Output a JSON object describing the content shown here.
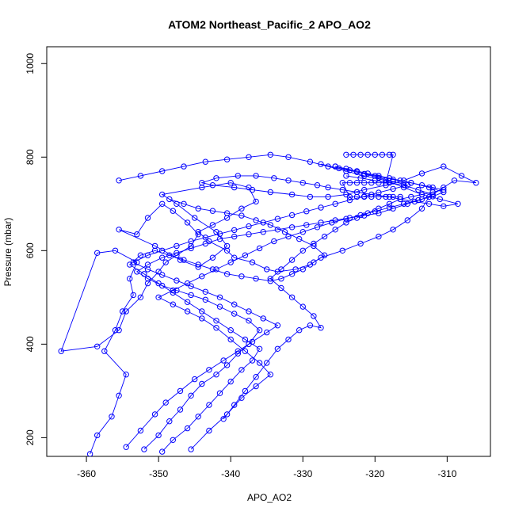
{
  "chart_data": {
    "type": "line",
    "title": "ATOM2 Northeast_Pacific_2 APO_AO2",
    "xlabel": "APO_AO2",
    "ylabel": "Pressure (mbar)",
    "xlim": [
      -365.5,
      -304
    ],
    "ylim": [
      1036,
      160
    ],
    "y_inverted": true,
    "x_ticks": [
      -360,
      -350,
      -340,
      -330,
      -320,
      -310
    ],
    "x_tick_labels": [
      "-360",
      "-350",
      "-340",
      "-330",
      "-320",
      "-310"
    ],
    "y_ticks": [
      200,
      400,
      600,
      800,
      1000
    ],
    "y_tick_labels": [
      "200",
      "400",
      "600",
      "800",
      "1000"
    ],
    "grid": false,
    "legend": "none",
    "line_color": "#0000ff",
    "marker": "open-circle",
    "series": [
      {
        "x": [
          -359.5,
          -358.5,
          -356.5,
          -355.5,
          -354.5,
          -357.5,
          -356,
          -355,
          -353.5,
          -354,
          -353,
          -356,
          -358.5,
          -363.5,
          -358.5,
          -355.5,
          -354.5,
          -352.5,
          -351.5,
          -350,
          -349,
          -347.5,
          -345.5,
          -344.5,
          -346,
          -348,
          -349.5,
          -351.5,
          -353,
          -355.5,
          -350.5,
          -347,
          -344.5,
          -342.5,
          -340.5,
          -342,
          -345,
          -347.5,
          -349.5,
          -344,
          -340,
          -337.5,
          -336.5,
          -338.5,
          -340.5,
          -342.5,
          -344.5,
          -343,
          -340.5,
          -339.5,
          -337,
          -335,
          -333.5,
          -331,
          -329,
          -327.5,
          -324.5,
          -322,
          -319.5,
          -317.5,
          -315.5,
          -313.5,
          -312.5,
          -310.5,
          -309,
          -306,
          -308,
          -310.5,
          -313.5,
          -316,
          -318.5,
          -321.5,
          -324,
          -326.5,
          -329,
          -331.5,
          -334.5,
          -337,
          -339.5,
          -342.5,
          -344,
          -342,
          -339,
          -336.5,
          -334,
          -332,
          -330,
          -328,
          -326.5,
          -324.5,
          -322.5,
          -320.5,
          -318,
          -316.5,
          -314.5,
          -312.5,
          -310.5,
          -308.5,
          -311,
          -313.5,
          -316,
          -318.5,
          -321.5,
          -324,
          -326.5,
          -329,
          -332,
          -334.5,
          -337.5,
          -340.5,
          -343.5,
          -346.5,
          -349.5,
          -352.5,
          -355.5
        ],
        "y": [
          165,
          205,
          245,
          290,
          335,
          385,
          430,
          470,
          505,
          540,
          575,
          600,
          595,
          385,
          395,
          430,
          470,
          500,
          530,
          555,
          575,
          590,
          610,
          635,
          660,
          685,
          700,
          670,
          635,
          645,
          610,
          580,
          565,
          585,
          610,
          640,
          670,
          700,
          720,
          735,
          745,
          735,
          705,
          690,
          670,
          655,
          640,
          620,
          600,
          585,
          575,
          560,
          555,
          560,
          570,
          585,
          600,
          615,
          630,
          645,
          665,
          690,
          715,
          735,
          750,
          745,
          760,
          780,
          765,
          750,
          740,
          730,
          720,
          715,
          715,
          720,
          725,
          730,
          735,
          740,
          745,
          755,
          760,
          760,
          755,
          750,
          745,
          740,
          735,
          730,
          725,
          720,
          715,
          710,
          705,
          700,
          695,
          700,
          710,
          720,
          735,
          750,
          760,
          770,
          780,
          790,
          800,
          805,
          800,
          795,
          790,
          780,
          770,
          760,
          750
        ]
      },
      {
        "x": [
          -349.5,
          -348,
          -346,
          -344.5,
          -343,
          -341.5,
          -340,
          -338.5,
          -337,
          -336,
          -338,
          -340,
          -342,
          -344,
          -346,
          -348,
          -350,
          -352,
          -354,
          -352.5,
          -350.5,
          -348.5,
          -346.5,
          -344.5,
          -342.5,
          -340.5,
          -338.5,
          -336.5,
          -334.5,
          -333,
          -331.5,
          -330,
          -328.5,
          -327,
          -328.5,
          -330.5,
          -332.5,
          -334.5,
          -336.5,
          -338.5,
          -340.5,
          -342.5,
          -344.5,
          -346.5,
          -348.5
        ],
        "y": [
          170,
          195,
          220,
          245,
          270,
          295,
          320,
          345,
          365,
          390,
          410,
          430,
          450,
          470,
          490,
          510,
          530,
          550,
          570,
          590,
          600,
          590,
          580,
          570,
          560,
          550,
          545,
          540,
          535,
          540,
          550,
          560,
          575,
          590,
          610,
          625,
          640,
          655,
          665,
          675,
          680,
          685,
          690,
          700,
          710
        ]
      },
      {
        "x": [
          -352,
          -350,
          -348.5,
          -347,
          -345.5,
          -344,
          -342,
          -340.5,
          -339,
          -337.5,
          -336,
          -337.5,
          -339.5,
          -341.5,
          -343.5,
          -345.5,
          -347.5,
          -349.5,
          -351.5,
          -353,
          -351.5,
          -349.5,
          -347.5,
          -345.5,
          -343.5,
          -341.5,
          -339.5,
          -337.5,
          -335.5,
          -333.5,
          -331.5,
          -329.5,
          -327.5,
          -325.5,
          -323.5,
          -321.5,
          -319.5,
          -317.5,
          -315.5,
          -313.5,
          -312,
          -314,
          -316,
          -318,
          -320,
          -322,
          -324
        ],
        "y": [
          175,
          205,
          235,
          260,
          290,
          315,
          335,
          355,
          380,
          400,
          430,
          450,
          465,
          480,
          495,
          505,
          515,
          525,
          540,
          555,
          570,
          585,
          595,
          605,
          615,
          625,
          630,
          635,
          640,
          645,
          650,
          655,
          660,
          665,
          670,
          675,
          680,
          690,
          700,
          710,
          720,
          730,
          740,
          745,
          750,
          755,
          760
        ]
      },
      {
        "x": [
          -345.5,
          -343,
          -340.5,
          -338.5,
          -336.5,
          -334.5,
          -336,
          -338,
          -340,
          -342,
          -344,
          -346,
          -348,
          -350,
          -348,
          -346,
          -344,
          -342,
          -340,
          -338,
          -336,
          -334,
          -332,
          -330,
          -328,
          -326,
          -324,
          -322,
          -320,
          -318,
          -316,
          -314,
          -312,
          -310.5,
          -312.5,
          -315,
          -317.5,
          -320,
          -322.5,
          -325,
          -327.5
        ],
        "y": [
          175,
          215,
          250,
          285,
          310,
          335,
          360,
          385,
          410,
          435,
          455,
          470,
          485,
          500,
          515,
          530,
          545,
          560,
          575,
          590,
          605,
          620,
          630,
          640,
          650,
          660,
          668,
          676,
          684,
          692,
          700,
          708,
          716,
          725,
          735,
          745,
          752,
          760,
          768,
          776,
          785
        ]
      },
      {
        "x": [
          -354.5,
          -352.5,
          -350.5,
          -349,
          -347,
          -345,
          -343,
          -341,
          -339,
          -337,
          -335,
          -333.5,
          -335.5,
          -337.5,
          -339.5,
          -341.5,
          -343.5,
          -345.5,
          -347.5,
          -349.5,
          -351.5,
          -353.5,
          -351.5,
          -349.5,
          -347.5,
          -345.5,
          -343.5,
          -341.5,
          -339.5,
          -337.5,
          -335.5,
          -333.5,
          -331.5,
          -329.5,
          -327.5,
          -325.5,
          -323.5,
          -321.5,
          -319.5,
          -317.5,
          -315.5,
          -317.5,
          -319.5,
          -321.5,
          -323.5,
          -325.5
        ],
        "y": [
          180,
          215,
          250,
          275,
          300,
          325,
          345,
          365,
          385,
          405,
          425,
          440,
          455,
          470,
          485,
          500,
          512,
          524,
          536,
          548,
          560,
          575,
          590,
          600,
          610,
          620,
          628,
          636,
          644,
          652,
          660,
          668,
          676,
          684,
          692,
          700,
          708,
          716,
          724,
          732,
          740,
          748,
          756,
          764,
          772,
          780
        ]
      },
      {
        "x": [
          -341,
          -339.5,
          -338,
          -336.5,
          -335,
          -333.5,
          -332,
          -330.5,
          -329,
          -327.5,
          -328.5,
          -330,
          -331.5,
          -333,
          -334.5,
          -333,
          -331.5,
          -330,
          -328.5,
          -327,
          -325.5,
          -324,
          -322.5,
          -321,
          -319.5,
          -318,
          -316.5,
          -315,
          -313.5,
          -312,
          -310.5,
          -312,
          -313.5,
          -315,
          -316.5,
          -318,
          -319.5,
          -321,
          -322.5,
          -324,
          -325.5
        ],
        "y": [
          240,
          270,
          300,
          330,
          360,
          390,
          410,
          430,
          440,
          435,
          460,
          480,
          500,
          520,
          540,
          560,
          580,
          600,
          615,
          630,
          645,
          660,
          670,
          680,
          690,
          700,
          710,
          715,
          720,
          725,
          730,
          735,
          740,
          745,
          750,
          755,
          760,
          765,
          770,
          775,
          780
        ]
      },
      {
        "x": [
          -324,
          -323,
          -322,
          -321,
          -320,
          -319,
          -318,
          -317.5,
          -318.5,
          -319.5,
          -320.5,
          -321.5,
          -322.5,
          -323.5,
          -324.5,
          -323.5,
          -322.5,
          -321.5,
          -320.5,
          -319.5,
          -318.5,
          -317.5,
          -316.5
        ],
        "y": [
          805,
          805,
          805,
          805,
          805,
          805,
          805,
          805,
          745,
          745,
          745,
          745,
          745,
          745,
          745,
          715,
          715,
          715,
          715,
          715,
          715,
          715,
          715
        ]
      }
    ]
  }
}
